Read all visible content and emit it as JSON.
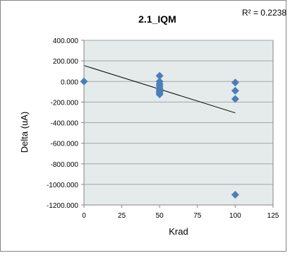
{
  "chart_data": {
    "type": "scatter",
    "title": "2.1_IQM",
    "r2_label": "R² = 0.2238",
    "xlabel": "Krad",
    "ylabel": "Delta (uA)",
    "xlim": [
      0,
      125
    ],
    "ylim": [
      -1200,
      400
    ],
    "x_ticks": [
      {
        "v": 0,
        "label": "0"
      },
      {
        "v": 25,
        "label": "25"
      },
      {
        "v": 50,
        "label": "50"
      },
      {
        "v": 75,
        "label": "75"
      },
      {
        "v": 100,
        "label": "100"
      },
      {
        "v": 125,
        "label": "125"
      }
    ],
    "y_ticks": [
      {
        "v": 400,
        "label": "400.000"
      },
      {
        "v": 200,
        "label": "200.000"
      },
      {
        "v": 0,
        "label": "0.000"
      },
      {
        "v": -200,
        "label": "-200.000"
      },
      {
        "v": -400,
        "label": "-400.000"
      },
      {
        "v": -600,
        "label": "-600.000"
      },
      {
        "v": -800,
        "label": "-800.000"
      },
      {
        "v": -1000,
        "label": "-1000.000"
      },
      {
        "v": -1200,
        "label": "-1200.000"
      }
    ],
    "grid": "horizontal",
    "points": [
      {
        "x": 0,
        "y": 0
      },
      {
        "x": 50,
        "y": 55
      },
      {
        "x": 50,
        "y": 0
      },
      {
        "x": 50,
        "y": -25
      },
      {
        "x": 50,
        "y": -45
      },
      {
        "x": 50,
        "y": -65
      },
      {
        "x": 50,
        "y": -80
      },
      {
        "x": 50,
        "y": -95
      },
      {
        "x": 50,
        "y": -110
      },
      {
        "x": 50,
        "y": -125
      },
      {
        "x": 100,
        "y": -10
      },
      {
        "x": 100,
        "y": -90
      },
      {
        "x": 100,
        "y": -170
      },
      {
        "x": 100,
        "y": -1100
      }
    ],
    "trendline": {
      "x": [
        0,
        100
      ],
      "y": [
        155,
        -305
      ]
    },
    "colors": {
      "marker": "#4a7ebb",
      "plot_bg": "#e4ebea",
      "grid": "#a6a6a6",
      "trend": "#000000",
      "border": "#868686"
    }
  }
}
